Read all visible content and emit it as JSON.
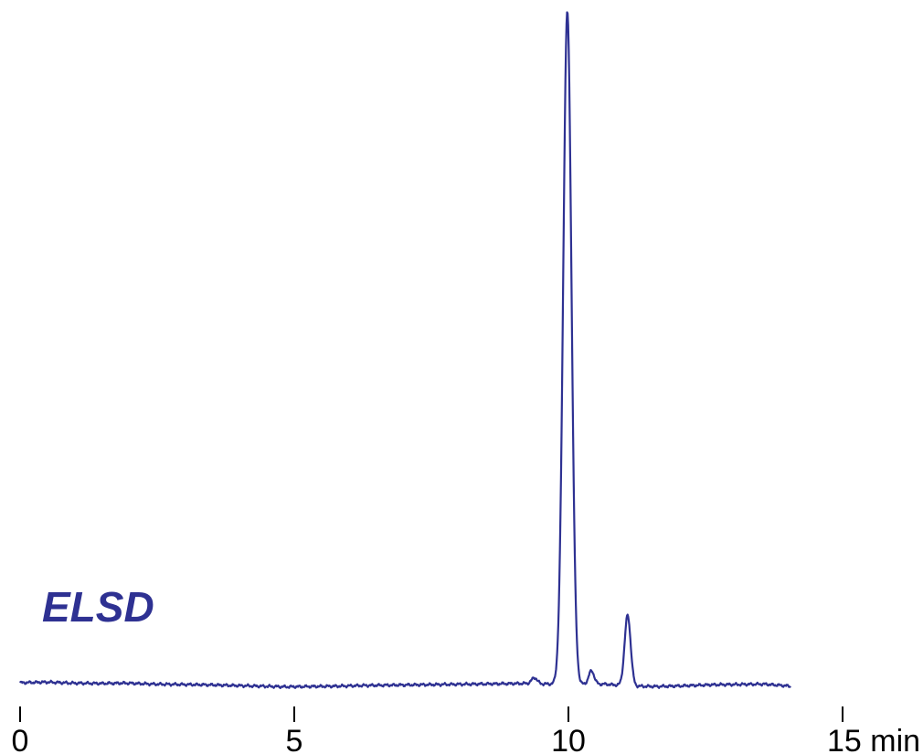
{
  "chart_data": {
    "type": "line",
    "title": "",
    "xlabel": "",
    "ylabel": "",
    "xlim": [
      0,
      15
    ],
    "ylim": [
      0,
      100
    ],
    "grid": false,
    "x_ticks": [
      {
        "value": 0,
        "label": "0"
      },
      {
        "value": 5,
        "label": "5"
      },
      {
        "value": 10,
        "label": "10"
      },
      {
        "value": 15,
        "label": "15 min"
      }
    ],
    "annotations": [
      {
        "text": "ELSD",
        "x": 0.4,
        "y": 9.5
      }
    ],
    "series": [
      {
        "color": "#2E3192",
        "x_range": [
          0,
          14.05
        ],
        "baseline_noise": [
          0.4,
          0.5,
          0.35,
          0.3,
          0.35,
          0.2,
          0.15,
          0.1,
          0.0,
          -0.1,
          -0.2,
          -0.15,
          -0.1,
          0.0,
          0.05,
          0.1,
          0.15,
          0.2,
          0.25,
          0.3,
          0.2,
          0.15,
          0.2,
          -0.1,
          -0.15,
          -0.05,
          0.1,
          0.15,
          0.2,
          -0.1
        ],
        "peaks": [
          {
            "rt": 9.38,
            "height": 0.9,
            "width": 0.05
          },
          {
            "rt": 9.98,
            "height": 100,
            "width": 0.075
          },
          {
            "rt": 10.42,
            "height": 2.0,
            "width": 0.05
          },
          {
            "rt": 11.08,
            "height": 10.5,
            "width": 0.055
          }
        ]
      }
    ]
  }
}
